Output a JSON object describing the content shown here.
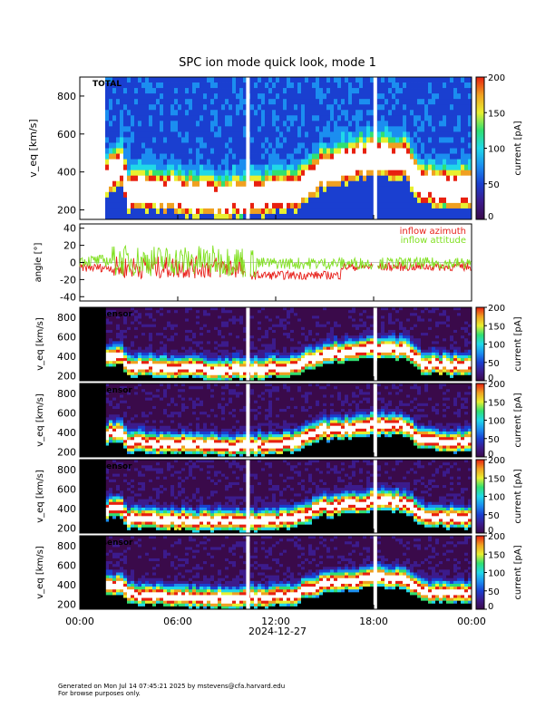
{
  "title": "SPC ion mode quick look, mode 1",
  "footer": {
    "line1": "Generated on Mon Jul 14 07:45:21 2025 by mstevens@cfa.harvard.edu",
    "line2": "For browse purposes only."
  },
  "date_label": "2024-12-27",
  "time_ticks": [
    "00:00",
    "06:00",
    "12:00",
    "18:00",
    "00:00"
  ],
  "colors": {
    "colormap": [
      "#000000",
      "#3a0a4a",
      "#3c1b8c",
      "#1a3fd0",
      "#1b8ef0",
      "#20d8e8",
      "#30e070",
      "#e8f030",
      "#f0a020",
      "#e82010",
      "#ffffff"
    ],
    "azimuth": "#e8201a",
    "attitude": "#80e020"
  },
  "chart_data": [
    {
      "type": "heatmap",
      "panel": "TOTAL",
      "label": "TOTAL",
      "ylabel": "v_eq [km/s]",
      "yticks": [
        "200",
        "400",
        "600",
        "800"
      ],
      "ylim": [
        150,
        900
      ],
      "colorbar": {
        "label": "current [pA]",
        "ticks": [
          "0",
          "50",
          "100",
          "150",
          "200"
        ],
        "range": [
          0,
          200
        ]
      },
      "bulk_speed_km_s": [
        {
          "t": "01:40",
          "v": 380
        },
        {
          "t": "02:30",
          "v": 420
        },
        {
          "t": "03:00",
          "v": 300
        },
        {
          "t": "06:00",
          "v": 280
        },
        {
          "t": "09:00",
          "v": 260
        },
        {
          "t": "11:00",
          "v": 270
        },
        {
          "t": "13:00",
          "v": 290
        },
        {
          "t": "15:00",
          "v": 420
        },
        {
          "t": "16:30",
          "v": 440
        },
        {
          "t": "18:00",
          "v": 480
        },
        {
          "t": "20:00",
          "v": 460
        },
        {
          "t": "21:00",
          "v": 320
        },
        {
          "t": "24:00",
          "v": 300
        }
      ]
    },
    {
      "type": "line",
      "panel": "angle",
      "ylabel": "angle [°]",
      "yticks": [
        "-40",
        "-20",
        "0",
        "20",
        "40"
      ],
      "ylim": [
        -45,
        45
      ],
      "series": [
        {
          "name": "inflow azimuth",
          "color": "#e8201a"
        },
        {
          "name": "inflow attitude",
          "color": "#80e020"
        }
      ]
    },
    {
      "type": "heatmap",
      "panel": "A sensor",
      "label": "A sensor",
      "ylabel": "v_eq [km/s]",
      "yticks": [
        "200",
        "400",
        "600",
        "800"
      ],
      "ylim": [
        150,
        900
      ],
      "colorbar": {
        "label": "current [pA]",
        "ticks": [
          "0",
          "50",
          "100",
          "150",
          "200"
        ],
        "range": [
          0,
          200
        ]
      }
    },
    {
      "type": "heatmap",
      "panel": "B sensor",
      "label": "B sensor",
      "ylabel": "v_eq [km/s]",
      "yticks": [
        "200",
        "400",
        "600",
        "800"
      ],
      "ylim": [
        150,
        900
      ],
      "colorbar": {
        "label": "current [pA]",
        "ticks": [
          "0",
          "50",
          "100",
          "150",
          "200"
        ],
        "range": [
          0,
          200
        ]
      }
    },
    {
      "type": "heatmap",
      "panel": "C sensor",
      "label": "C sensor",
      "ylabel": "v_eq [km/s]",
      "yticks": [
        "200",
        "400",
        "600",
        "800"
      ],
      "ylim": [
        150,
        900
      ],
      "colorbar": {
        "label": "current [pA]",
        "ticks": [
          "0",
          "50",
          "100",
          "150",
          "200"
        ],
        "range": [
          0,
          200
        ]
      }
    },
    {
      "type": "heatmap",
      "panel": "D sensor",
      "label": "D sensor",
      "ylabel": "v_eq [km/s]",
      "yticks": [
        "200",
        "400",
        "600",
        "800"
      ],
      "ylim": [
        150,
        900
      ],
      "colorbar": {
        "label": "current [pA]",
        "ticks": [
          "0",
          "50",
          "100",
          "150",
          "200"
        ],
        "range": [
          0,
          200
        ]
      }
    }
  ]
}
